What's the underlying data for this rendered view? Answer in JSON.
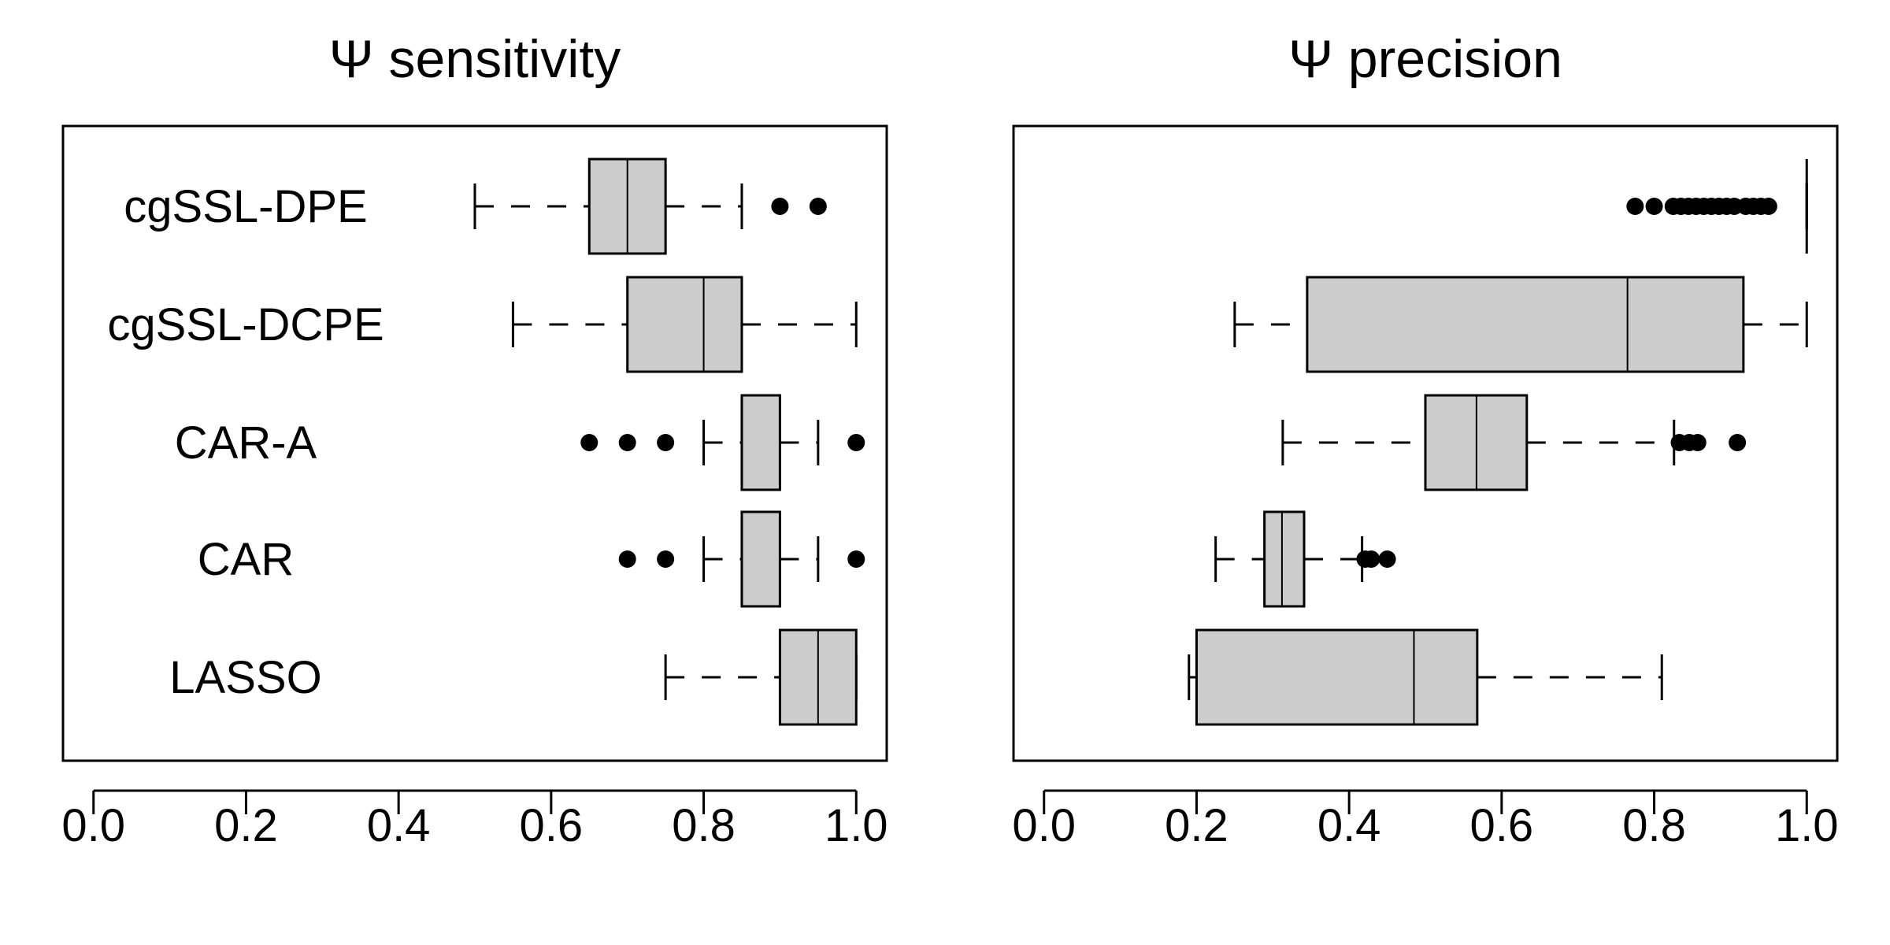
{
  "chart_data": [
    {
      "type": "boxplot",
      "orientation": "horizontal",
      "title": "Ψ sensitivity",
      "xlim": [
        -0.04,
        1.04
      ],
      "xticks": [
        "0.0",
        "0.2",
        "0.4",
        "0.6",
        "0.8",
        "1.0"
      ],
      "xtick_values": [
        0,
        0.2,
        0.4,
        0.6,
        0.8,
        1.0
      ],
      "grid": false,
      "categories": [
        "cgSSL-DPE",
        "cgSSL-DCPE",
        "CAR-A",
        "CAR",
        "LASSO"
      ],
      "boxes": [
        {
          "whisker_low": 0.5,
          "q1": 0.65,
          "median": 0.7,
          "q3": 0.75,
          "whisker_high": 0.85,
          "outliers": [
            0.9,
            0.95
          ]
        },
        {
          "whisker_low": 0.55,
          "q1": 0.7,
          "median": 0.8,
          "q3": 0.85,
          "whisker_high": 1.0,
          "outliers": []
        },
        {
          "whisker_low": 0.8,
          "q1": 0.85,
          "median": 0.85,
          "q3": 0.9,
          "whisker_high": 0.95,
          "outliers": [
            0.65,
            0.7,
            0.75,
            1.0
          ]
        },
        {
          "whisker_low": 0.8,
          "q1": 0.85,
          "median": 0.85,
          "q3": 0.9,
          "whisker_high": 0.95,
          "outliers": [
            0.7,
            0.75,
            1.0
          ]
        },
        {
          "whisker_low": 0.75,
          "q1": 0.9,
          "median": 0.95,
          "q3": 1.0,
          "whisker_high": 1.0,
          "outliers": []
        }
      ]
    },
    {
      "type": "boxplot",
      "orientation": "horizontal",
      "title": "Ψ precision",
      "xlim": [
        -0.04,
        1.04
      ],
      "xticks": [
        "0.0",
        "0.2",
        "0.4",
        "0.6",
        "0.8",
        "1.0"
      ],
      "xtick_values": [
        0,
        0.2,
        0.4,
        0.6,
        0.8,
        1.0
      ],
      "grid": false,
      "categories": [
        "cgSSL-DPE",
        "cgSSL-DCPE",
        "CAR-A",
        "CAR",
        "LASSO"
      ],
      "boxes": [
        {
          "whisker_low": 1.0,
          "q1": 1.0,
          "median": 1.0,
          "q3": 1.0,
          "whisker_high": 1.0,
          "outliers": [
            0.775,
            0.8,
            0.825,
            0.835,
            0.845,
            0.855,
            0.865,
            0.875,
            0.885,
            0.895,
            0.905,
            0.92,
            0.93,
            0.94,
            0.95
          ]
        },
        {
          "whisker_low": 0.25,
          "q1": 0.345,
          "median": 0.765,
          "q3": 0.917,
          "whisker_high": 1.0,
          "outliers": []
        },
        {
          "whisker_low": 0.313,
          "q1": 0.5,
          "median": 0.567,
          "q3": 0.633,
          "whisker_high": 0.826,
          "outliers": [
            0.833,
            0.846,
            0.857,
            0.909
          ]
        },
        {
          "whisker_low": 0.225,
          "q1": 0.289,
          "median": 0.312,
          "q3": 0.341,
          "whisker_high": 0.417,
          "outliers": [
            0.421,
            0.429,
            0.45
          ]
        },
        {
          "whisker_low": 0.19,
          "q1": 0.2,
          "median": 0.485,
          "q3": 0.568,
          "whisker_high": 0.81,
          "outliers": []
        }
      ]
    }
  ]
}
